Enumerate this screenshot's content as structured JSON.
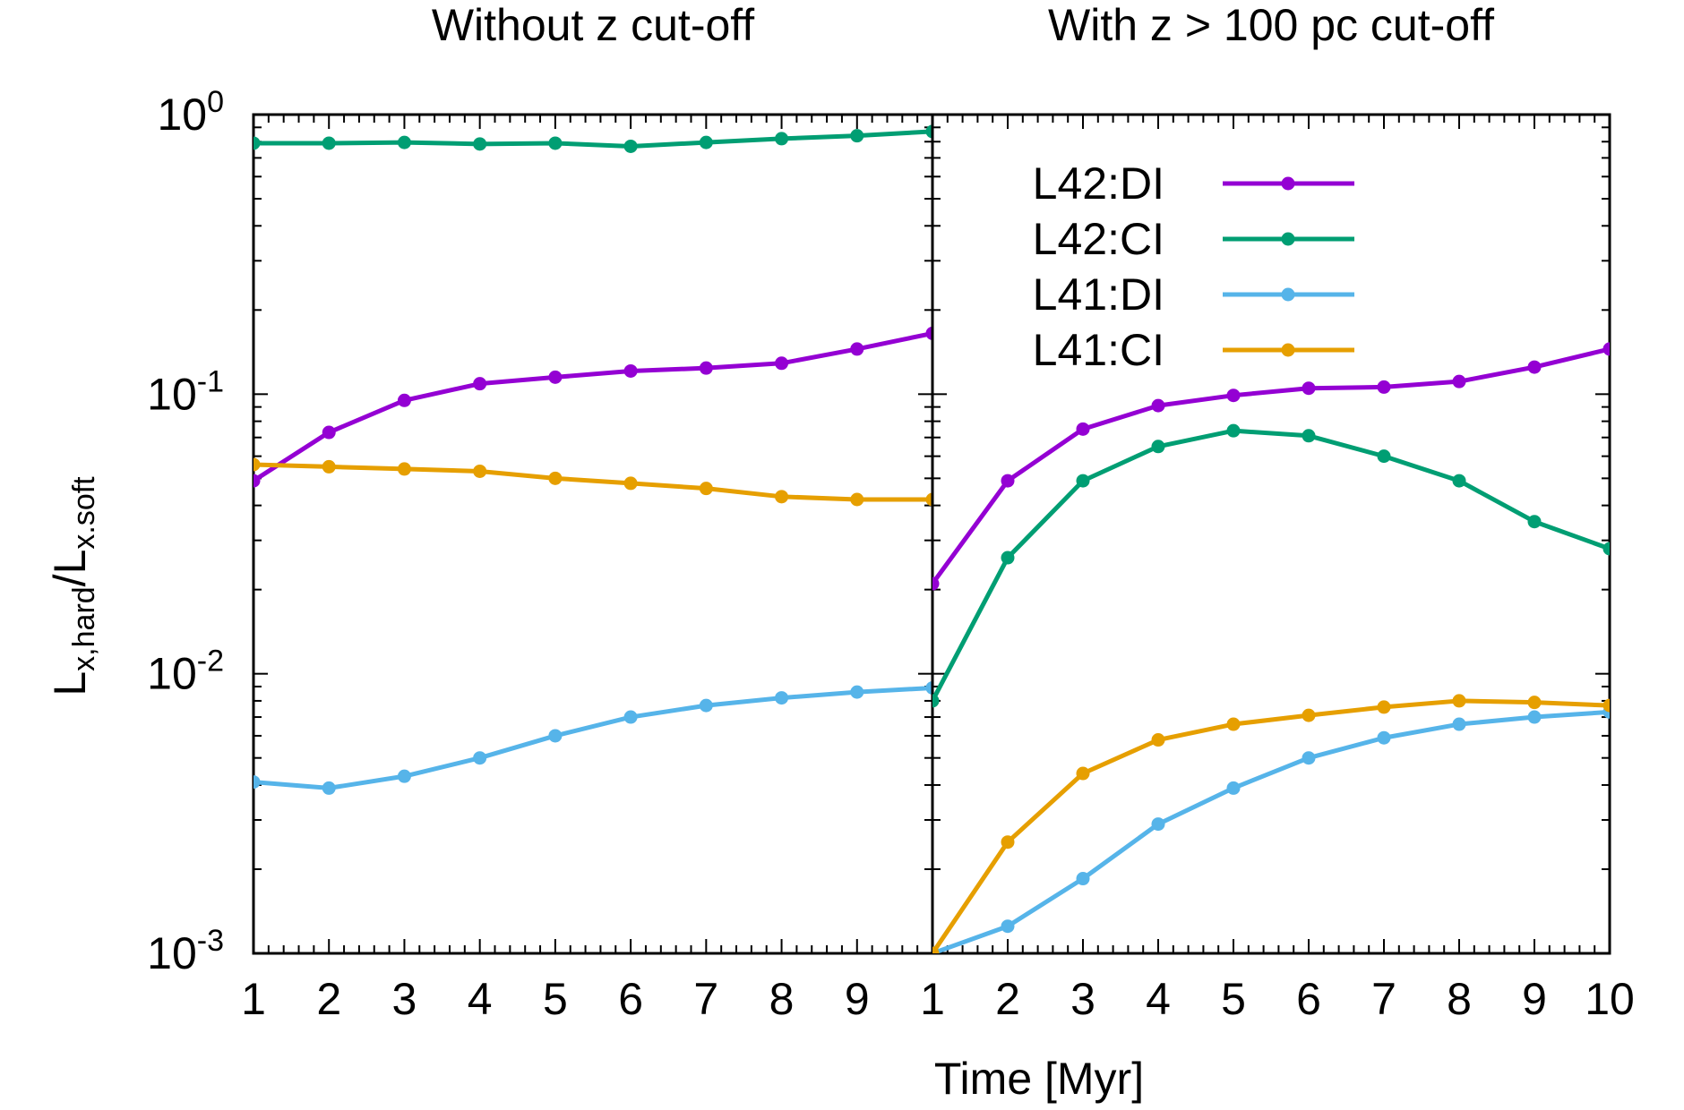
{
  "chart_data": {
    "type": "line",
    "xlabel": "Time [Myr]",
    "ylabel": {
      "base": "L",
      "sub1": "x,hard",
      "sep": "/L",
      "sub2": "x.soft"
    },
    "ylim": [
      0.001,
      1
    ],
    "yscale": "log",
    "y_tick_labels": [
      {
        "value": 1,
        "base": "10",
        "exp": "0"
      },
      {
        "value": 0.1,
        "base": "10",
        "exp": "-1"
      },
      {
        "value": 0.01,
        "base": "10",
        "exp": "-2"
      },
      {
        "value": 0.001,
        "base": "10",
        "exp": "-3"
      }
    ],
    "legend": {
      "placement": "top-right (right panel)",
      "entries": [
        "L42:DI",
        "L42:CI",
        "L41:DI",
        "L41:CI"
      ]
    },
    "panels": [
      {
        "title": "Without z cut-off",
        "xlim": [
          1,
          10
        ],
        "x_tick_labels": [
          "1",
          "2",
          "3",
          "4",
          "5",
          "6",
          "7",
          "8",
          "9"
        ],
        "x": [
          1,
          2,
          3,
          4,
          5,
          6,
          7,
          8,
          9,
          10
        ],
        "series": [
          {
            "name": "L42:DI",
            "color": "#9400d3",
            "values": [
              0.049,
              0.073,
              0.095,
              0.109,
              0.115,
              0.121,
              0.124,
              0.129,
              0.145,
              0.165
            ]
          },
          {
            "name": "L42:CI",
            "color": "#009e73",
            "values": [
              0.79,
              0.79,
              0.795,
              0.785,
              0.79,
              0.77,
              0.795,
              0.82,
              0.84,
              0.87
            ]
          },
          {
            "name": "L41:DI",
            "color": "#56b4e9",
            "values": [
              0.0041,
              0.0039,
              0.0043,
              0.005,
              0.006,
              0.007,
              0.0077,
              0.0082,
              0.0086,
              0.0089
            ]
          },
          {
            "name": "L41:CI",
            "color": "#e69f00",
            "values": [
              0.056,
              0.055,
              0.054,
              0.053,
              0.05,
              0.048,
              0.046,
              0.043,
              0.042,
              0.042
            ]
          }
        ]
      },
      {
        "title": "With z > 100 pc cut-off",
        "xlim": [
          1,
          10
        ],
        "x_tick_labels": [
          "1",
          "2",
          "3",
          "4",
          "5",
          "6",
          "7",
          "8",
          "9",
          "10"
        ],
        "x": [
          1,
          2,
          3,
          4,
          5,
          6,
          7,
          8,
          9,
          10
        ],
        "series": [
          {
            "name": "L42:DI",
            "color": "#9400d3",
            "values": [
              0.021,
              0.049,
              0.075,
              0.091,
              0.099,
              0.105,
              0.106,
              0.111,
              0.125,
              0.145
            ]
          },
          {
            "name": "L42:CI",
            "color": "#009e73",
            "values": [
              0.008,
              0.026,
              0.049,
              0.065,
              0.074,
              0.071,
              0.06,
              0.049,
              0.035,
              0.028
            ]
          },
          {
            "name": "L41:DI",
            "color": "#56b4e9",
            "values": [
              0.001,
              0.00125,
              0.00185,
              0.0029,
              0.0039,
              0.005,
              0.0059,
              0.0066,
              0.007,
              0.0073
            ]
          },
          {
            "name": "L41:CI",
            "color": "#e69f00",
            "values": [
              0.001,
              0.0025,
              0.0044,
              0.0058,
              0.0066,
              0.0071,
              0.0076,
              0.008,
              0.0079,
              0.0077
            ]
          }
        ]
      }
    ]
  }
}
